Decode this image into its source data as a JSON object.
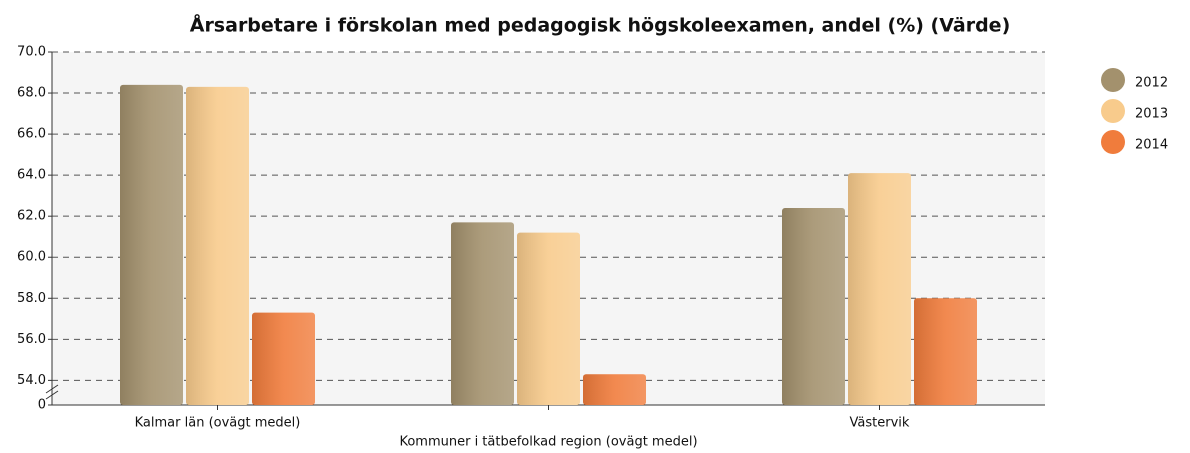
{
  "chart_data": {
    "type": "bar",
    "title": "Årsarbetare i förskolan med pedagogisk högskoleexamen, andel (%) (Värde)",
    "categories": [
      "Kalmar län (ovägt medel)",
      "Kommuner i tätbefolkad region (ovägt medel)",
      "Västervik"
    ],
    "series": [
      {
        "name": "2012",
        "color": "#a3916d",
        "values": [
          68.4,
          61.7,
          62.4
        ]
      },
      {
        "name": "2013",
        "color": "#f8cb8c",
        "values": [
          68.3,
          61.2,
          64.1
        ]
      },
      {
        "name": "2014",
        "color": "#f07c3c",
        "values": [
          57.3,
          54.3,
          58.0
        ]
      }
    ],
    "ylim": [
      52.8,
      70
    ],
    "yticks": [
      0,
      {
        "value": 54,
        "label": "54.0"
      },
      {
        "value": 56,
        "label": "56.0"
      },
      {
        "value": 58,
        "label": "58.0"
      },
      {
        "value": 60,
        "label": "60.0"
      },
      {
        "value": 62,
        "label": "62.0"
      },
      {
        "value": 64,
        "label": "64.0"
      },
      {
        "value": 66,
        "label": "66.0"
      },
      {
        "value": 68,
        "label": "68.0"
      },
      {
        "value": 70,
        "label": "70.0"
      }
    ],
    "axis_break": true,
    "grid": true,
    "legend": "right"
  }
}
